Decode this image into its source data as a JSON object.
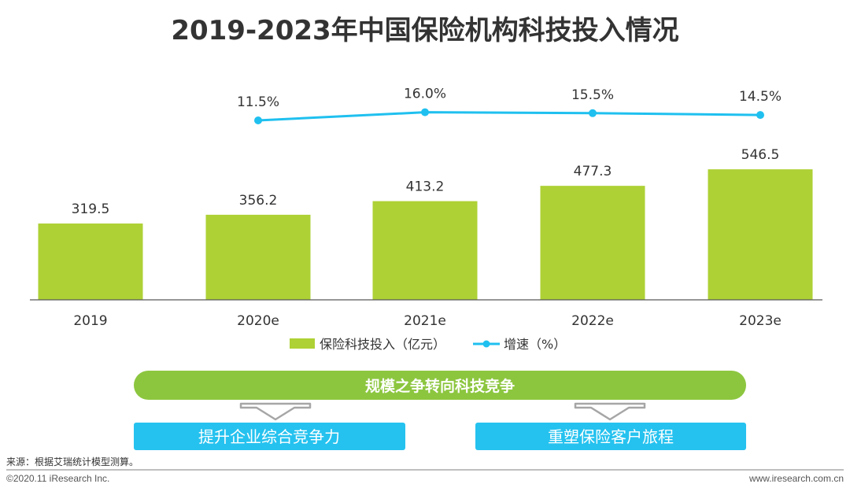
{
  "colors": {
    "bar": "#aed135",
    "line": "#1fc0ef",
    "pill": "#8cc63f",
    "box": "#25c2ef",
    "arrow": "#a6a6a6",
    "text": "#333333"
  },
  "chart_data": {
    "type": "bar",
    "title": "2019-2023年中国保险机构科技投入情况",
    "categories": [
      "2019",
      "2020e",
      "2021e",
      "2022e",
      "2023e"
    ],
    "series": [
      {
        "name": "保险科技投入（亿元）",
        "type": "bar",
        "values": [
          319.5,
          356.2,
          413.2,
          477.3,
          546.5
        ],
        "labels": [
          "319.5",
          "356.2",
          "413.2",
          "477.3",
          "546.5"
        ]
      },
      {
        "name": "增速（%）",
        "type": "line",
        "values": [
          null,
          11.5,
          16.0,
          15.5,
          14.5
        ],
        "labels": [
          "",
          "11.5%",
          "16.0%",
          "15.5%",
          "14.5%"
        ]
      }
    ],
    "xlabel": "",
    "ylabel": "",
    "legend_position": "bottom"
  },
  "summary": {
    "pill_label": "规模之争转向科技竞争",
    "left_box_label": "提升企业综合竞争力",
    "right_box_label": "重塑保险客户旅程"
  },
  "footer": {
    "source": "来源：根据艾瑞统计模型测算。",
    "copyright": "©2020.11 iResearch Inc.",
    "website": "www.iresearch.com.cn"
  }
}
